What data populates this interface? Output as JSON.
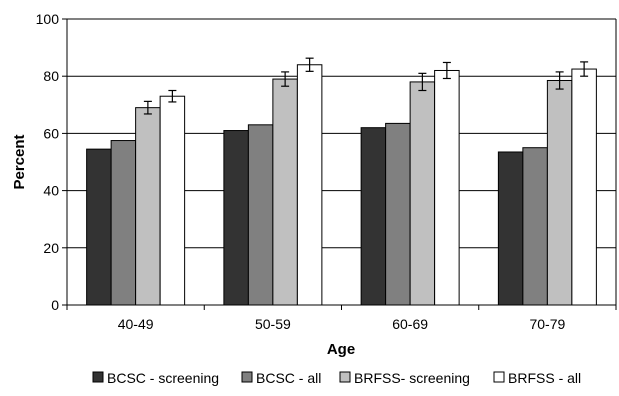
{
  "chart_data": {
    "type": "bar",
    "title": "",
    "xlabel": "Age",
    "ylabel": "Percent",
    "ylim": [
      0,
      100
    ],
    "yticks": [
      0,
      20,
      40,
      60,
      80,
      100
    ],
    "grid": true,
    "legend_position": "bottom",
    "categories": [
      "40-49",
      "50-59",
      "60-69",
      "70-79"
    ],
    "series": [
      {
        "name": "BCSC - screening",
        "color": "#333333",
        "values": [
          54.5,
          61,
          62,
          53.5
        ],
        "error": null
      },
      {
        "name": "BCSC - all",
        "color": "#808080",
        "values": [
          57.5,
          63,
          63.5,
          55
        ],
        "error": null
      },
      {
        "name": "BRFSS- screening",
        "color": "#c0c0c0",
        "values": [
          69,
          79,
          78,
          78.5
        ],
        "error": [
          2.2,
          2.5,
          3,
          3
        ]
      },
      {
        "name": "BRFSS - all",
        "color": "#ffffff",
        "values": [
          73,
          84,
          82,
          82.5
        ],
        "error": [
          2,
          2.3,
          2.8,
          2.5
        ]
      }
    ]
  }
}
